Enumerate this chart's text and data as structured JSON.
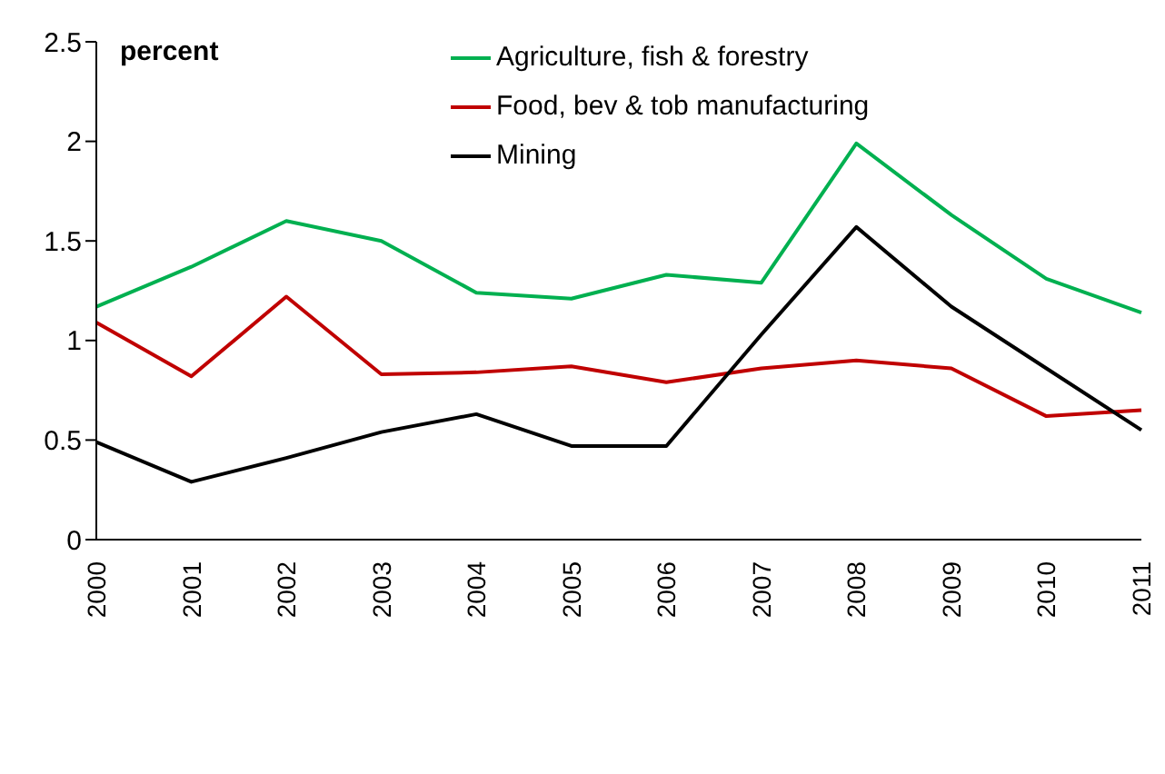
{
  "chart_data": {
    "type": "line",
    "ylabel": "percent",
    "categories": [
      "2000",
      "2001",
      "2002",
      "2003",
      "2004",
      "2005",
      "2006",
      "2007",
      "2008",
      "2009",
      "2010",
      "2011"
    ],
    "series": [
      {
        "name": "Agriculture, fish & forestry",
        "color": "#00b050",
        "values": [
          1.17,
          1.37,
          1.6,
          1.5,
          1.24,
          1.21,
          1.33,
          1.29,
          1.99,
          1.63,
          1.31,
          1.14
        ]
      },
      {
        "name": "Food, bev & tob manufacturing",
        "color": "#c00000",
        "values": [
          1.09,
          0.82,
          1.22,
          0.83,
          0.84,
          0.87,
          0.79,
          0.86,
          0.9,
          0.86,
          0.62,
          0.65
        ]
      },
      {
        "name": "Mining",
        "color": "#000000",
        "values": [
          0.49,
          0.29,
          0.41,
          0.54,
          0.63,
          0.47,
          0.47,
          1.03,
          1.57,
          1.17,
          0.86,
          0.55
        ]
      }
    ],
    "ylim": [
      0,
      2.5
    ],
    "yticks": [
      0,
      0.5,
      1,
      1.5,
      2,
      2.5
    ],
    "grid": false,
    "legend": "top",
    "marker": "none",
    "line_style": "solid"
  }
}
